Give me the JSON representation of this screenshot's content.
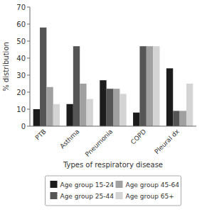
{
  "chart_data": {
    "type": "bar",
    "categories": [
      "PTB",
      "Asthma",
      "Pneumonia",
      "COPD",
      "Pleural dx"
    ],
    "series": [
      {
        "name": "Age group 15-24",
        "color": "#1c1c1c",
        "values": [
          10,
          13,
          27,
          8,
          34
        ]
      },
      {
        "name": "Age group 25-44",
        "color": "#555555",
        "values": [
          58,
          47,
          22,
          47,
          9
        ]
      },
      {
        "name": "Age group 45-64",
        "color": "#a0a0a0",
        "values": [
          23,
          25,
          22,
          47,
          9
        ]
      },
      {
        "name": "Age group 65+",
        "color": "#d4d4d4",
        "values": [
          13,
          16,
          19,
          47,
          25
        ]
      }
    ],
    "xlabel": "Types of respiratory disease",
    "ylabel": "% distribution",
    "ylim": [
      0,
      70
    ],
    "yticks": [
      0,
      10,
      20,
      30,
      40,
      50,
      60,
      70
    ],
    "grid": false,
    "legend": "bottom"
  }
}
